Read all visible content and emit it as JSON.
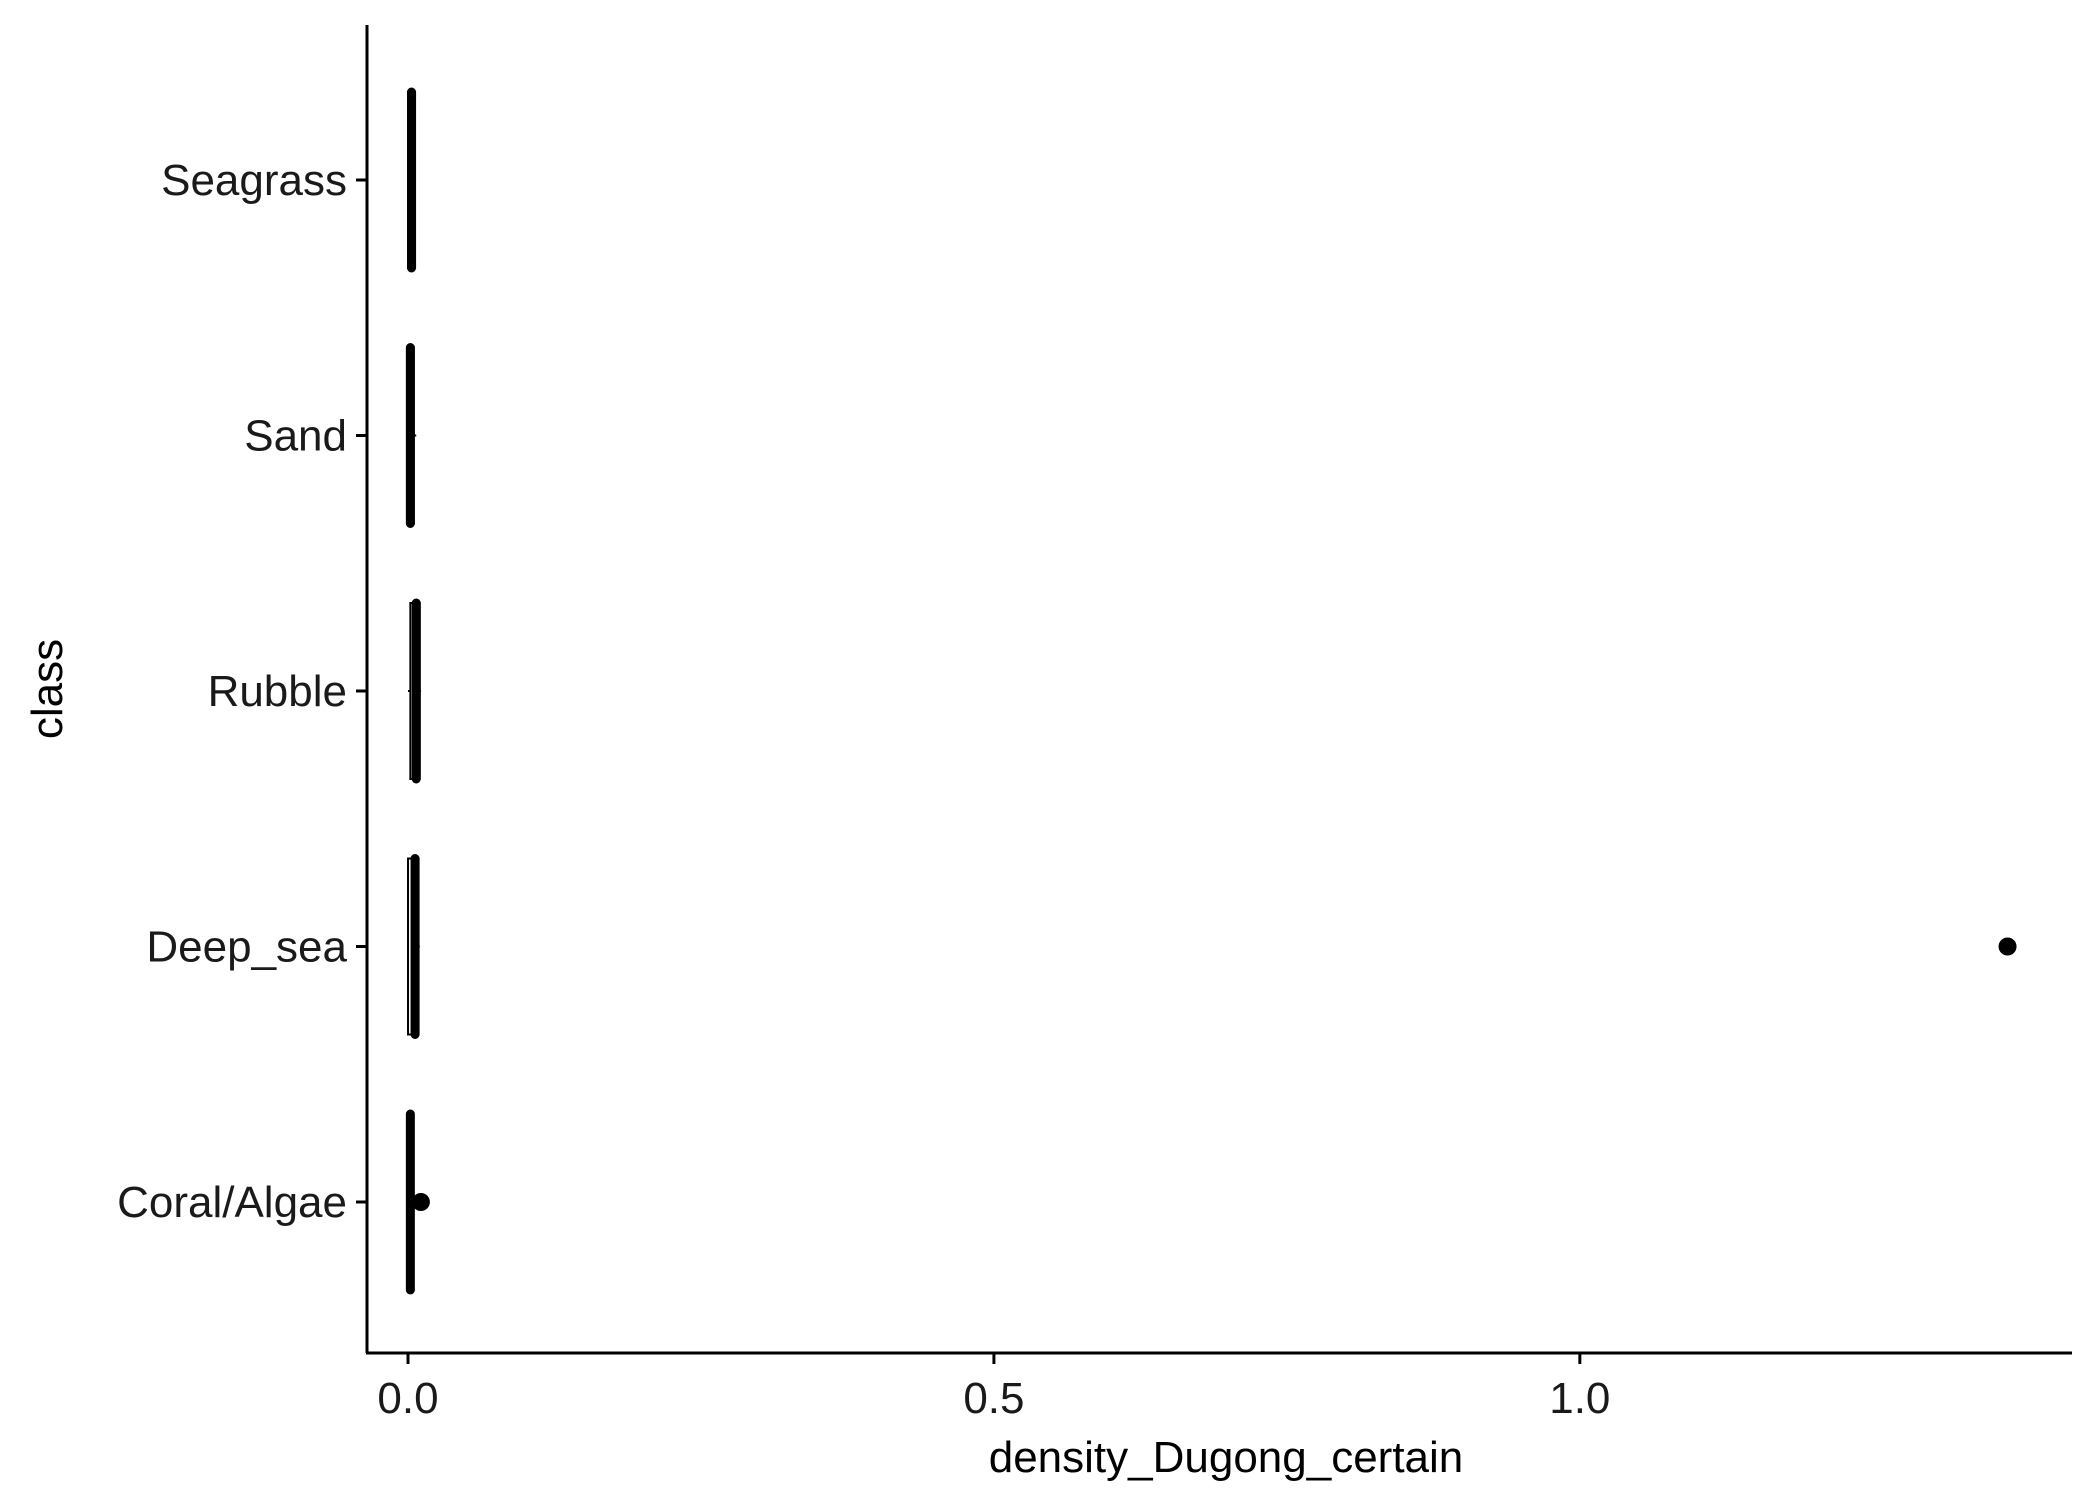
{
  "chart_data": {
    "type": "boxplot",
    "orientation": "horizontal",
    "xlabel": "density_Dugong_certain",
    "ylabel": "class",
    "xlim": [
      -0.035,
      1.42
    ],
    "x_ticks": [
      {
        "value": 0.0,
        "label": "0.0"
      },
      {
        "value": 0.5,
        "label": "0.5"
      },
      {
        "value": 1.0,
        "label": "1.0"
      }
    ],
    "categories": [
      "Seagrass",
      "Sand",
      "Rubble",
      "Deep_sea",
      "Coral/Algae"
    ],
    "boxes": [
      {
        "category": "Seagrass",
        "min": 0.0,
        "q1": 0.0,
        "median": 0.003,
        "q3": 0.006,
        "max": 0.006,
        "outliers": []
      },
      {
        "category": "Sand",
        "min": 0.0,
        "q1": 0.0,
        "median": 0.002,
        "q3": 0.005,
        "max": 0.007,
        "outliers": []
      },
      {
        "category": "Rubble",
        "min": 0.0,
        "q1": 0.002,
        "median": 0.007,
        "q3": 0.01,
        "max": 0.011,
        "outliers": []
      },
      {
        "category": "Deep_sea",
        "min": 0.0,
        "q1": 0.0,
        "median": 0.006,
        "q3": 0.009,
        "max": 0.01,
        "outliers": [
          1.365
        ]
      },
      {
        "category": "Coral/Algae",
        "min": 0.0,
        "q1": 0.0,
        "median": 0.002,
        "q3": 0.004,
        "max": 0.004,
        "outliers": [
          0.011
        ]
      }
    ],
    "grid": false,
    "legend": "none",
    "colors": {
      "box": "#000000",
      "axis": "#000000",
      "text": "#1a1a1a"
    }
  }
}
